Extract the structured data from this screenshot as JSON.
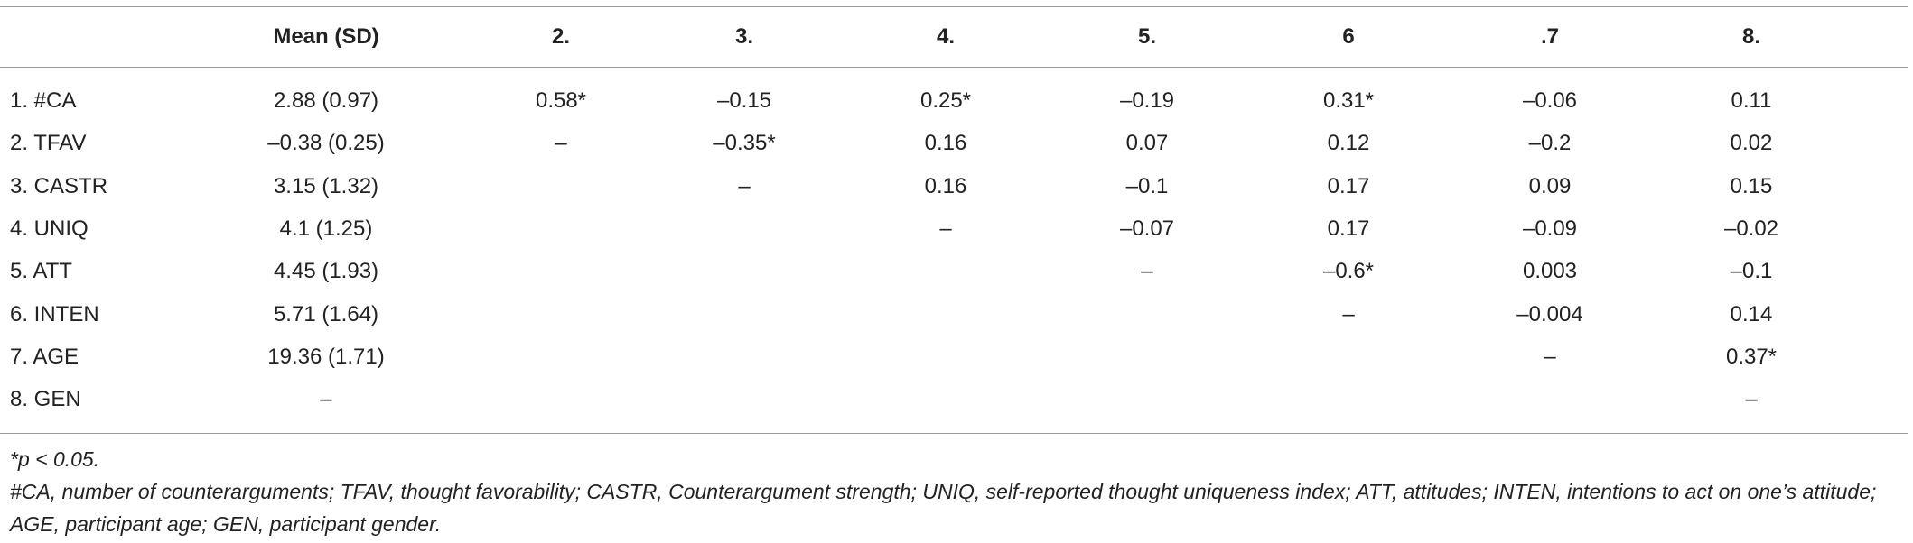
{
  "table": {
    "columns": [
      "Mean (SD)",
      "2.",
      "3.",
      "4.",
      "5.",
      "6",
      ".7",
      "8."
    ],
    "rows": [
      {
        "label": "1. #CA",
        "cells": [
          "2.88 (0.97)",
          "0.58*",
          "–0.15",
          "0.25*",
          "–0.19",
          "0.31*",
          "–0.06",
          "0.11"
        ]
      },
      {
        "label": "2. TFAV",
        "cells": [
          "–0.38 (0.25)",
          "–",
          "–0.35*",
          "0.16",
          "0.07",
          "0.12",
          "–0.2",
          "0.02"
        ]
      },
      {
        "label": "3. CASTR",
        "cells": [
          "3.15 (1.32)",
          null,
          "–",
          "0.16",
          "–0.1",
          "0.17",
          "0.09",
          "0.15"
        ]
      },
      {
        "label": "4. UNIQ",
        "cells": [
          "4.1 (1.25)",
          null,
          null,
          "–",
          "–0.07",
          "0.17",
          "–0.09",
          "–0.02"
        ]
      },
      {
        "label": "5. ATT",
        "cells": [
          "4.45 (1.93)",
          null,
          null,
          null,
          "–",
          "–0.6*",
          "0.003",
          "–0.1"
        ]
      },
      {
        "label": "6. INTEN",
        "cells": [
          "5.71 (1.64)",
          null,
          null,
          null,
          null,
          "–",
          "–0.004",
          "0.14"
        ]
      },
      {
        "label": "7. AGE",
        "cells": [
          "19.36 (1.71)",
          null,
          null,
          null,
          null,
          null,
          "–",
          "0.37*"
        ]
      },
      {
        "label": "8. GEN",
        "cells": [
          "–",
          null,
          null,
          null,
          null,
          null,
          null,
          "–"
        ]
      }
    ]
  },
  "footnotes": [
    "*p < 0.05.",
    "#CA, number of counterarguments; TFAV, thought favorability; CASTR, Counterargument strength; UNIQ, self-reported thought uniqueness index; ATT, attitudes; INTEN, intentions to act on one’s attitude; AGE, participant age; GEN, participant gender."
  ]
}
